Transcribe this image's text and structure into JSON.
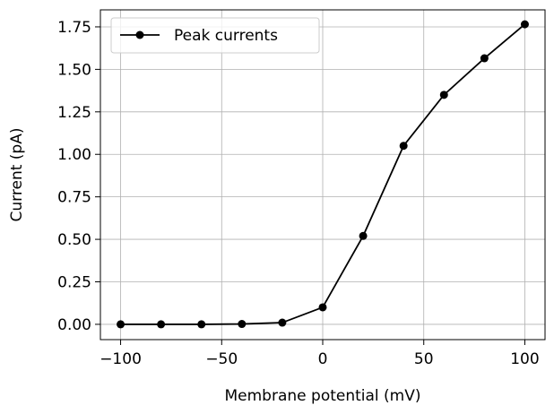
{
  "chart_data": {
    "type": "line",
    "title": "",
    "xlabel": "Membrane potential (mV)",
    "ylabel": "Current (pA)",
    "xlim": [
      -110,
      110
    ],
    "ylim": [
      -0.09,
      1.85
    ],
    "xticks": [
      -100,
      -50,
      0,
      50,
      100
    ],
    "xtick_labels": [
      "−100",
      "−50",
      "0",
      "50",
      "100"
    ],
    "yticks": [
      0.0,
      0.25,
      0.5,
      0.75,
      1.0,
      1.25,
      1.5,
      1.75
    ],
    "ytick_labels": [
      "0.00",
      "0.25",
      "0.50",
      "0.75",
      "1.00",
      "1.25",
      "1.50",
      "1.75"
    ],
    "grid": true,
    "legend_position": "top-left",
    "series": [
      {
        "name": "Peak currents",
        "color": "#000000",
        "marker": "circle",
        "x": [
          -100,
          -80,
          -60,
          -40,
          -20,
          0,
          20,
          40,
          60,
          80,
          100
        ],
        "y": [
          0.0,
          0.0,
          0.0,
          0.002,
          0.01,
          0.1,
          0.52,
          1.05,
          1.35,
          1.565,
          1.765
        ]
      }
    ]
  }
}
